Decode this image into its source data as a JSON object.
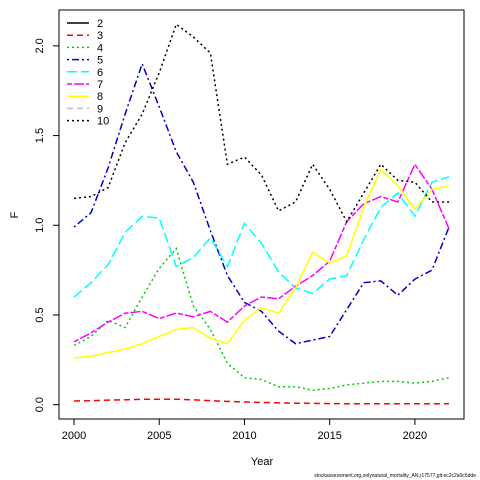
{
  "chart_data": {
    "type": "line",
    "xlabel": "Year",
    "ylabel": "F",
    "footnote": "stockassessment.org,onlynatural_mortality_AN,r17577,git:ec2c2a0c6dde",
    "x": [
      2000,
      2001,
      2002,
      2003,
      2004,
      2005,
      2006,
      2007,
      2008,
      2009,
      2010,
      2011,
      2012,
      2013,
      2014,
      2015,
      2016,
      2017,
      2018,
      2019,
      2020,
      2021,
      2022
    ],
    "xlim": [
      1999.12,
      2022.88
    ],
    "xticks": [
      2000,
      2005,
      2010,
      2015,
      2020
    ],
    "ylim": [
      -0.08,
      2.2
    ],
    "yticks": [
      {
        "value": 0,
        "label": "0.0"
      },
      0.5,
      {
        "value": 1,
        "label": "1.0"
      },
      1.5,
      {
        "value": 2,
        "label": "2.0"
      }
    ],
    "legend": "top-left",
    "series": [
      {
        "name": "2",
        "color": "#000000",
        "linestyle": "solid",
        "values": [
          null,
          null,
          null,
          null,
          null,
          null,
          null,
          null,
          null,
          null,
          null,
          null,
          null,
          null,
          null,
          null,
          null,
          null,
          null,
          null,
          null,
          null,
          null
        ]
      },
      {
        "name": "3",
        "color": "#ff0000",
        "linestyle": "dashed",
        "values": [
          0.02,
          0.022,
          0.025,
          0.027,
          0.03,
          0.03,
          0.03,
          0.027,
          0.022,
          0.018,
          0.015,
          0.012,
          0.01,
          0.008,
          0.007,
          0.006,
          0.005,
          0.005,
          0.005,
          0.005,
          0.005,
          0.005,
          0.005
        ]
      },
      {
        "name": "4",
        "color": "#00cd00",
        "linestyle": "dotted",
        "values": [
          0.33,
          0.38,
          0.47,
          0.43,
          0.6,
          0.76,
          0.87,
          0.55,
          0.42,
          0.23,
          0.15,
          0.14,
          0.1,
          0.1,
          0.08,
          0.09,
          0.11,
          0.12,
          0.13,
          0.13,
          0.12,
          0.13,
          0.15
        ]
      },
      {
        "name": "5",
        "color": "#0000cd",
        "linestyle": "dotdash",
        "values": [
          0.99,
          1.07,
          1.32,
          1.62,
          1.9,
          1.66,
          1.41,
          1.24,
          0.97,
          0.72,
          0.57,
          0.52,
          0.41,
          0.34,
          0.36,
          0.38,
          0.53,
          0.68,
          0.69,
          0.61,
          0.7,
          0.75,
          0.99
        ]
      },
      {
        "name": "6",
        "color": "#00ffff",
        "linestyle": "longdash",
        "values": [
          0.6,
          0.68,
          0.78,
          0.96,
          1.05,
          1.04,
          0.77,
          0.82,
          0.93,
          0.77,
          1.01,
          0.9,
          0.74,
          0.65,
          0.62,
          0.7,
          0.72,
          0.92,
          1.1,
          1.18,
          1.05,
          1.24,
          1.27
        ]
      },
      {
        "name": "7",
        "color": "#ff00ff",
        "linestyle": "twodash",
        "values": [
          0.35,
          0.4,
          0.46,
          0.51,
          0.52,
          0.48,
          0.51,
          0.49,
          0.52,
          0.46,
          0.55,
          0.6,
          0.59,
          0.66,
          0.72,
          0.8,
          1.02,
          1.12,
          1.16,
          1.13,
          1.34,
          1.2,
          0.98
        ]
      },
      {
        "name": "8",
        "color": "#ffff00",
        "linestyle": "solid",
        "values": [
          0.26,
          0.27,
          0.29,
          0.31,
          0.34,
          0.38,
          0.42,
          0.43,
          0.37,
          0.34,
          0.47,
          0.54,
          0.51,
          0.65,
          0.85,
          0.79,
          0.83,
          1.1,
          1.31,
          1.22,
          1.09,
          1.2,
          1.22
        ]
      },
      {
        "name": "9",
        "color": "#bebebe",
        "linestyle": "dashed",
        "values": [
          null,
          null,
          null,
          null,
          null,
          null,
          null,
          null,
          null,
          null,
          null,
          null,
          null,
          null,
          null,
          null,
          null,
          null,
          null,
          null,
          null,
          null,
          null
        ]
      },
      {
        "name": "10",
        "color": "#000000",
        "linestyle": "dotted",
        "values": [
          1.15,
          1.16,
          1.21,
          1.46,
          1.62,
          1.85,
          2.12,
          2.05,
          1.96,
          1.34,
          1.38,
          1.28,
          1.08,
          1.13,
          1.34,
          1.2,
          1.02,
          1.18,
          1.34,
          1.25,
          1.24,
          1.13,
          1.13
        ]
      }
    ]
  }
}
